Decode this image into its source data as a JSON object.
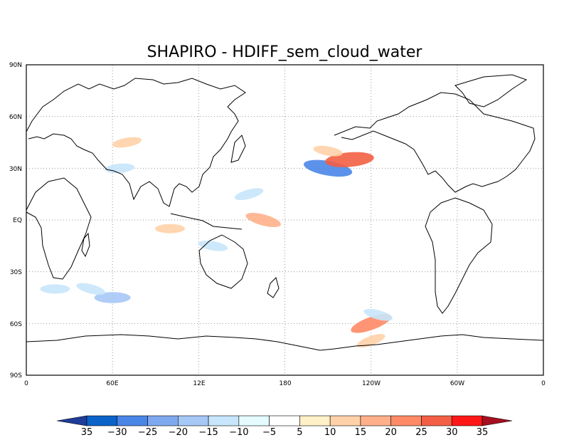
{
  "chart_data": {
    "type": "heatmap",
    "title": "SHAPIRO - HDIFF_sem_cloud_water",
    "x_ticks": [
      "0",
      "60E",
      "12E",
      "180",
      "120W",
      "60W",
      "0"
    ],
    "y_ticks": [
      "90N",
      "60N",
      "30N",
      "EQ",
      "30S",
      "60S",
      "90S"
    ],
    "xlim": [
      0,
      360
    ],
    "ylim": [
      -90,
      90
    ],
    "grid": true,
    "map": "world coastlines, Pacific-centered",
    "colorbar": {
      "labels": [
        "35",
        "-30",
        "-25",
        "-20",
        "-15",
        "-10",
        "-5",
        "5",
        "10",
        "15",
        "20",
        "25",
        "30",
        "35"
      ],
      "colors": [
        "#1e3c9a",
        "#0b62c8",
        "#4a86e8",
        "#7fa9ee",
        "#a6c8f5",
        "#c8e6fb",
        "#e4fcff",
        "#ffffff",
        "#fff0c8",
        "#ffd1a8",
        "#ffb08a",
        "#ff8a66",
        "#f25f44",
        "#ff1616",
        "#a50f1f"
      ]
    },
    "features": [
      {
        "lon": 210,
        "lat": 30,
        "value": -25
      },
      {
        "lon": 225,
        "lat": 35,
        "value": 25
      },
      {
        "lon": 210,
        "lat": 40,
        "value": 10
      },
      {
        "lon": 240,
        "lat": -60,
        "value": 20
      },
      {
        "lon": 240,
        "lat": -70,
        "value": 10
      },
      {
        "lon": 70,
        "lat": 45,
        "value": 10
      },
      {
        "lon": 65,
        "lat": 30,
        "value": -10
      },
      {
        "lon": 60,
        "lat": -45,
        "value": -15
      },
      {
        "lon": 155,
        "lat": 15,
        "value": -10
      },
      {
        "lon": 165,
        "lat": 0,
        "value": 15
      },
      {
        "lon": 130,
        "lat": -15,
        "value": -10
      },
      {
        "lon": 100,
        "lat": -5,
        "value": 10
      },
      {
        "lon": 45,
        "lat": -40,
        "value": -10
      },
      {
        "lon": 245,
        "lat": -55,
        "value": -10
      },
      {
        "lon": 20,
        "lat": -40,
        "value": -10
      }
    ]
  }
}
